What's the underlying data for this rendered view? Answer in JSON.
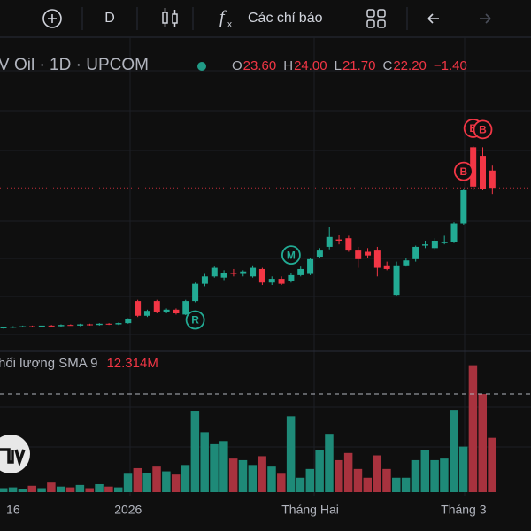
{
  "toolbar": {
    "interval": "D",
    "indicators": "Các chỉ báo"
  },
  "chart_data": {
    "type": "candlestick",
    "symbol": "V Oil · 1D · UPCOM",
    "ohlc": {
      "open": {
        "value": 23.6,
        "label": "23.60"
      },
      "high": {
        "value": 24.0,
        "label": "24.00"
      },
      "low": {
        "value": 21.7,
        "label": "21.70"
      },
      "close": {
        "value": 22.2,
        "label": "22.20"
      },
      "change": {
        "value": -1.4,
        "label": "−1.40"
      },
      "open_prefix": "O",
      "high_prefix": "H",
      "low_prefix": "L",
      "close_prefix": "C"
    },
    "categories": [
      null,
      "16",
      null,
      null,
      null,
      null,
      null,
      null,
      null,
      null,
      null,
      null,
      null,
      "2026",
      null,
      null,
      null,
      null,
      null,
      null,
      null,
      null,
      null,
      null,
      null,
      null,
      null,
      null,
      null,
      null,
      null,
      null,
      "Tháng Hai",
      null,
      null,
      null,
      null,
      null,
      null,
      null,
      null,
      null,
      null,
      null,
      null,
      null,
      null,
      null,
      "Tháng 3",
      null,
      null,
      null
    ],
    "candles": [
      [
        10.8,
        10.9,
        10.75,
        10.85
      ],
      [
        10.85,
        10.95,
        10.8,
        10.9
      ],
      [
        10.9,
        11.0,
        10.85,
        10.95
      ],
      [
        10.95,
        11.0,
        10.9,
        10.9
      ],
      [
        10.9,
        11.0,
        10.85,
        11.0
      ],
      [
        11.0,
        11.05,
        10.9,
        10.95
      ],
      [
        10.95,
        11.1,
        10.9,
        11.05
      ],
      [
        11.05,
        11.1,
        11.0,
        11.0
      ],
      [
        11.0,
        11.15,
        10.95,
        11.1
      ],
      [
        11.1,
        11.15,
        11.0,
        11.05
      ],
      [
        11.05,
        11.2,
        11.0,
        11.15
      ],
      [
        11.15,
        11.2,
        11.05,
        11.1
      ],
      [
        11.1,
        11.25,
        11.05,
        11.2
      ],
      [
        11.2,
        11.6,
        11.15,
        11.5
      ],
      [
        13.0,
        13.1,
        11.7,
        11.8
      ],
      [
        11.8,
        12.3,
        11.7,
        12.2
      ],
      [
        13.0,
        13.1,
        12.0,
        12.1
      ],
      [
        12.1,
        12.4,
        12.0,
        12.3
      ],
      [
        12.3,
        12.4,
        11.9,
        12.0
      ],
      [
        11.9,
        13.1,
        11.85,
        13.0
      ],
      [
        13.0,
        14.5,
        12.9,
        14.4
      ],
      [
        14.4,
        15.2,
        14.2,
        15.0
      ],
      [
        15.0,
        15.8,
        14.9,
        15.7
      ],
      [
        14.9,
        15.5,
        14.7,
        15.3
      ],
      [
        15.3,
        15.6,
        15.0,
        15.2
      ],
      [
        15.2,
        15.5,
        15.0,
        15.4
      ],
      [
        15.0,
        15.9,
        14.9,
        15.7
      ],
      [
        15.6,
        15.7,
        14.3,
        14.5
      ],
      [
        14.5,
        15.0,
        14.3,
        14.8
      ],
      [
        14.8,
        15.0,
        14.3,
        14.4
      ],
      [
        14.6,
        15.3,
        14.5,
        15.1
      ],
      [
        15.1,
        15.8,
        15.0,
        15.6
      ],
      [
        15.2,
        16.5,
        15.1,
        16.4
      ],
      [
        16.6,
        17.3,
        16.5,
        17.1
      ],
      [
        17.4,
        19.0,
        17.2,
        18.2
      ],
      [
        18.0,
        18.4,
        17.6,
        17.9
      ],
      [
        18.1,
        18.3,
        17.0,
        17.1
      ],
      [
        17.1,
        17.4,
        15.7,
        16.4
      ],
      [
        17.0,
        17.3,
        16.5,
        16.7
      ],
      [
        17.1,
        17.4,
        15.0,
        15.7
      ],
      [
        15.9,
        16.2,
        15.5,
        15.6
      ],
      [
        13.5,
        16.2,
        13.4,
        15.9
      ],
      [
        15.9,
        16.5,
        15.8,
        16.3
      ],
      [
        16.4,
        17.5,
        16.2,
        17.4
      ],
      [
        17.5,
        17.9,
        17.3,
        17.6
      ],
      [
        17.3,
        18.1,
        17.2,
        17.9
      ],
      [
        17.7,
        18.3,
        17.6,
        17.8
      ],
      [
        17.8,
        19.4,
        17.7,
        19.3
      ],
      [
        19.3,
        22.1,
        19.2,
        22.0
      ],
      [
        25.5,
        25.6,
        22.0,
        22.3
      ],
      [
        24.8,
        25.5,
        22.0,
        22.1
      ],
      [
        23.6,
        24.0,
        21.7,
        22.2
      ]
    ],
    "ylim": [
      9.05,
      34.23
    ],
    "up_color": "#22ab94",
    "down_color": "#f23645",
    "volume": {
      "name": "hối lượng SMA 9",
      "sma": {
        "value": 12.314,
        "label": "12.314M"
      },
      "ylim": [
        0,
        17.3
      ],
      "up_color": "#1e8a78",
      "down_color": "#a8323e",
      "values": [
        0.5,
        0.6,
        0.4,
        0.8,
        0.5,
        1.2,
        0.7,
        0.6,
        0.9,
        0.5,
        1.0,
        0.7,
        0.6,
        2.3,
        3.0,
        2.4,
        3.2,
        2.6,
        2.2,
        3.4,
        10.2,
        7.5,
        6.0,
        6.4,
        4.2,
        4.0,
        3.4,
        4.5,
        3.2,
        2.3,
        9.5,
        1.8,
        2.9,
        5.3,
        7.3,
        4.0,
        4.9,
        2.9,
        1.8,
        4.6,
        2.9,
        1.8,
        1.8,
        4.0,
        5.3,
        4.0,
        4.2,
        10.3,
        5.7,
        15.9,
        12.3,
        6.8
      ]
    },
    "markers": [
      {
        "text": "R",
        "bar": 20,
        "position": "below"
      },
      {
        "text": "M",
        "bar": 30,
        "position": "above"
      },
      {
        "text": "B",
        "bar": 48,
        "position": "above"
      },
      {
        "text": "B",
        "bar": 49,
        "position": "above"
      },
      {
        "text": "B",
        "bar": 50,
        "position": "above"
      }
    ]
  }
}
